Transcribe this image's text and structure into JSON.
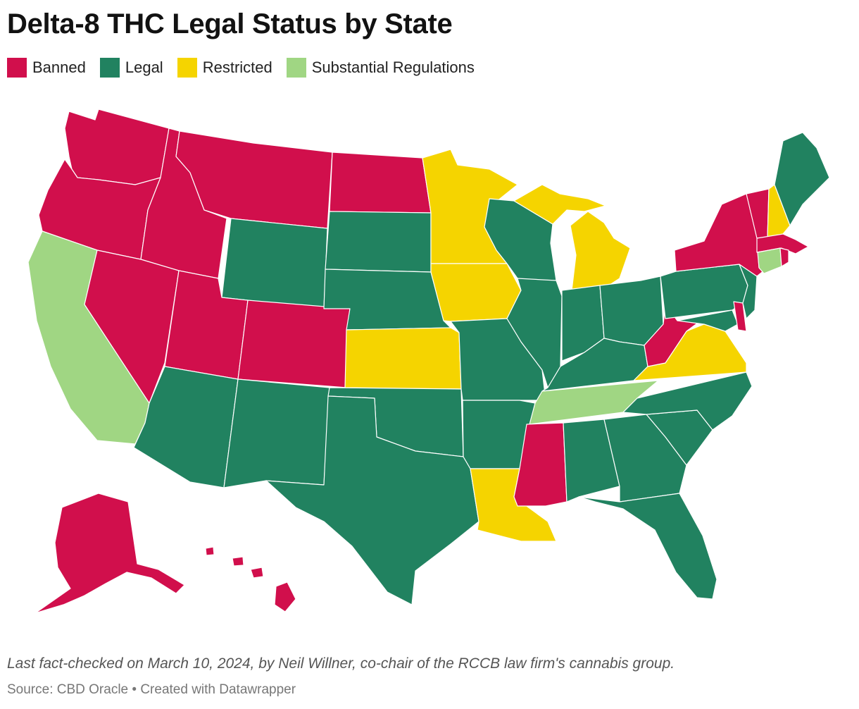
{
  "title": "Delta-8 THC Legal Status by State",
  "legend": [
    {
      "label": "Banned",
      "color": "#d10f4c"
    },
    {
      "label": "Legal",
      "color": "#218260"
    },
    {
      "label": "Restricted",
      "color": "#f5d400"
    },
    {
      "label": "Substantial Regulations",
      "color": "#a0d683"
    }
  ],
  "states": {
    "WA": "Banned",
    "OR": "Banned",
    "ID": "Banned",
    "MT": "Banned",
    "ND": "Banned",
    "NV": "Banned",
    "UT": "Banned",
    "CO": "Banned",
    "AK": "Banned",
    "HI": "Banned",
    "MS": "Banned",
    "WV": "Banned",
    "NY": "Banned",
    "VT": "Banned",
    "MA": "Banned",
    "RI": "Banned",
    "DE": "Banned",
    "CA": "Substantial Regulations",
    "TN": "Substantial Regulations",
    "CT": "Substantial Regulations",
    "MN": "Restricted",
    "MI": "Restricted",
    "IA": "Restricted",
    "KS": "Restricted",
    "LA": "Restricted",
    "VA": "Restricted",
    "NH": "Restricted",
    "WY": "Legal",
    "SD": "Legal",
    "NE": "Legal",
    "AZ": "Legal",
    "NM": "Legal",
    "TX": "Legal",
    "OK": "Legal",
    "MO": "Legal",
    "AR": "Legal",
    "WI": "Legal",
    "IL": "Legal",
    "IN": "Legal",
    "OH": "Legal",
    "KY": "Legal",
    "PA": "Legal",
    "NJ": "Legal",
    "MD": "Legal",
    "NC": "Legal",
    "SC": "Legal",
    "GA": "Legal",
    "AL": "Legal",
    "FL": "Legal",
    "ME": "Legal"
  },
  "footer": {
    "note": "Last fact-checked on March 10, 2024, by Neil Willner, co-chair of the RCCB law firm's cannabis group.",
    "source": "Source: CBD Oracle • Created with Datawrapper"
  }
}
